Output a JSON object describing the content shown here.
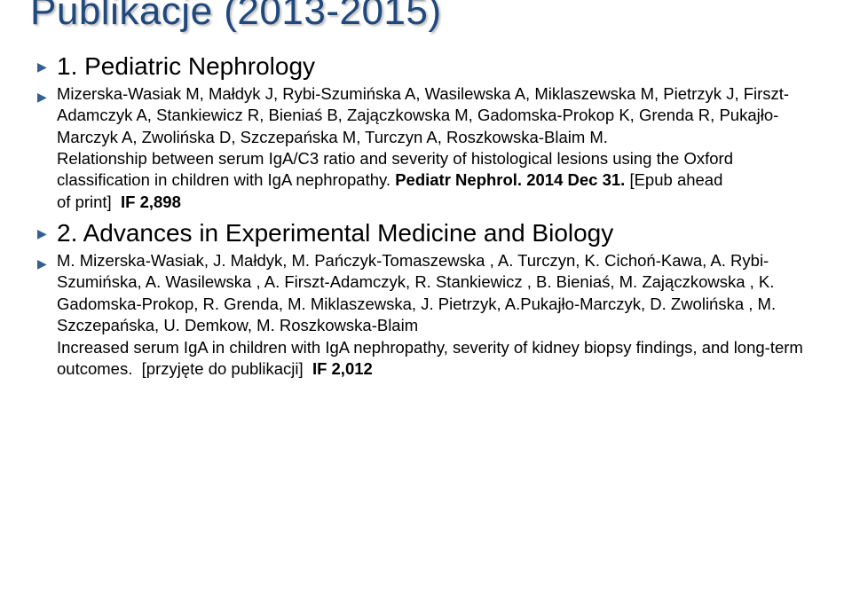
{
  "title": "Publikacje (2013-2015)",
  "title_color": "#1f497d",
  "title_fontsize": 44,
  "bullet_color": "#365f91",
  "entries": [
    {
      "heading": "1. Pediatric Nephrology",
      "authors": "Mizerska-Wasiak M, Małdyk J, Rybi-Szumińska A, Wasilewska A, Miklaszewska M, Pietrzyk J, Firszt-Adamczyk A, Stankiewicz R, Bieniaś B, Zajączkowska M, Gadomska-Prokop K, Grenda R, Pukajło-Marczyk A, Zwolińska D, Szczepańska M, Turczyn A, Roszkowska-Blaim M.",
      "article": "Relationship between serum IgA/C3 ratio and severity of histological lesions using the Oxford classification in children with IgA nephropathy.",
      "journal_ref": "Pediatr Nephrol. 2014 Dec 31.",
      "epub": "[Epub ahead of print]",
      "if_label": "IF 2,898"
    },
    {
      "heading": "2. Advances in Experimental Medicine and Biology",
      "authors": "M. Mizerska-Wasiak, J. Małdyk, M. Pańczyk-Tomaszewska , A. Turczyn, K. Cichoń-Kawa, A. Rybi-Szumińska, A. Wasilewska , A. Firszt-Adamczyk, R. Stankiewicz , B. Bieniaś, M. Zajączkowska , K. Gadomska-Prokop, R. Grenda, M. Miklaszewska, J. Pietrzyk, A.Pukajło-Marczyk, D. Zwolińska , M. Szczepańska, U. Demkow, M. Roszkowska-Blaim",
      "article": "Increased serum IgA in children with IgA nephropathy, severity of  kidney biopsy findings, and long-term outcomes.",
      "accepted": "[przyjęte do publikacji]",
      "if_label": "IF  2,012"
    }
  ]
}
